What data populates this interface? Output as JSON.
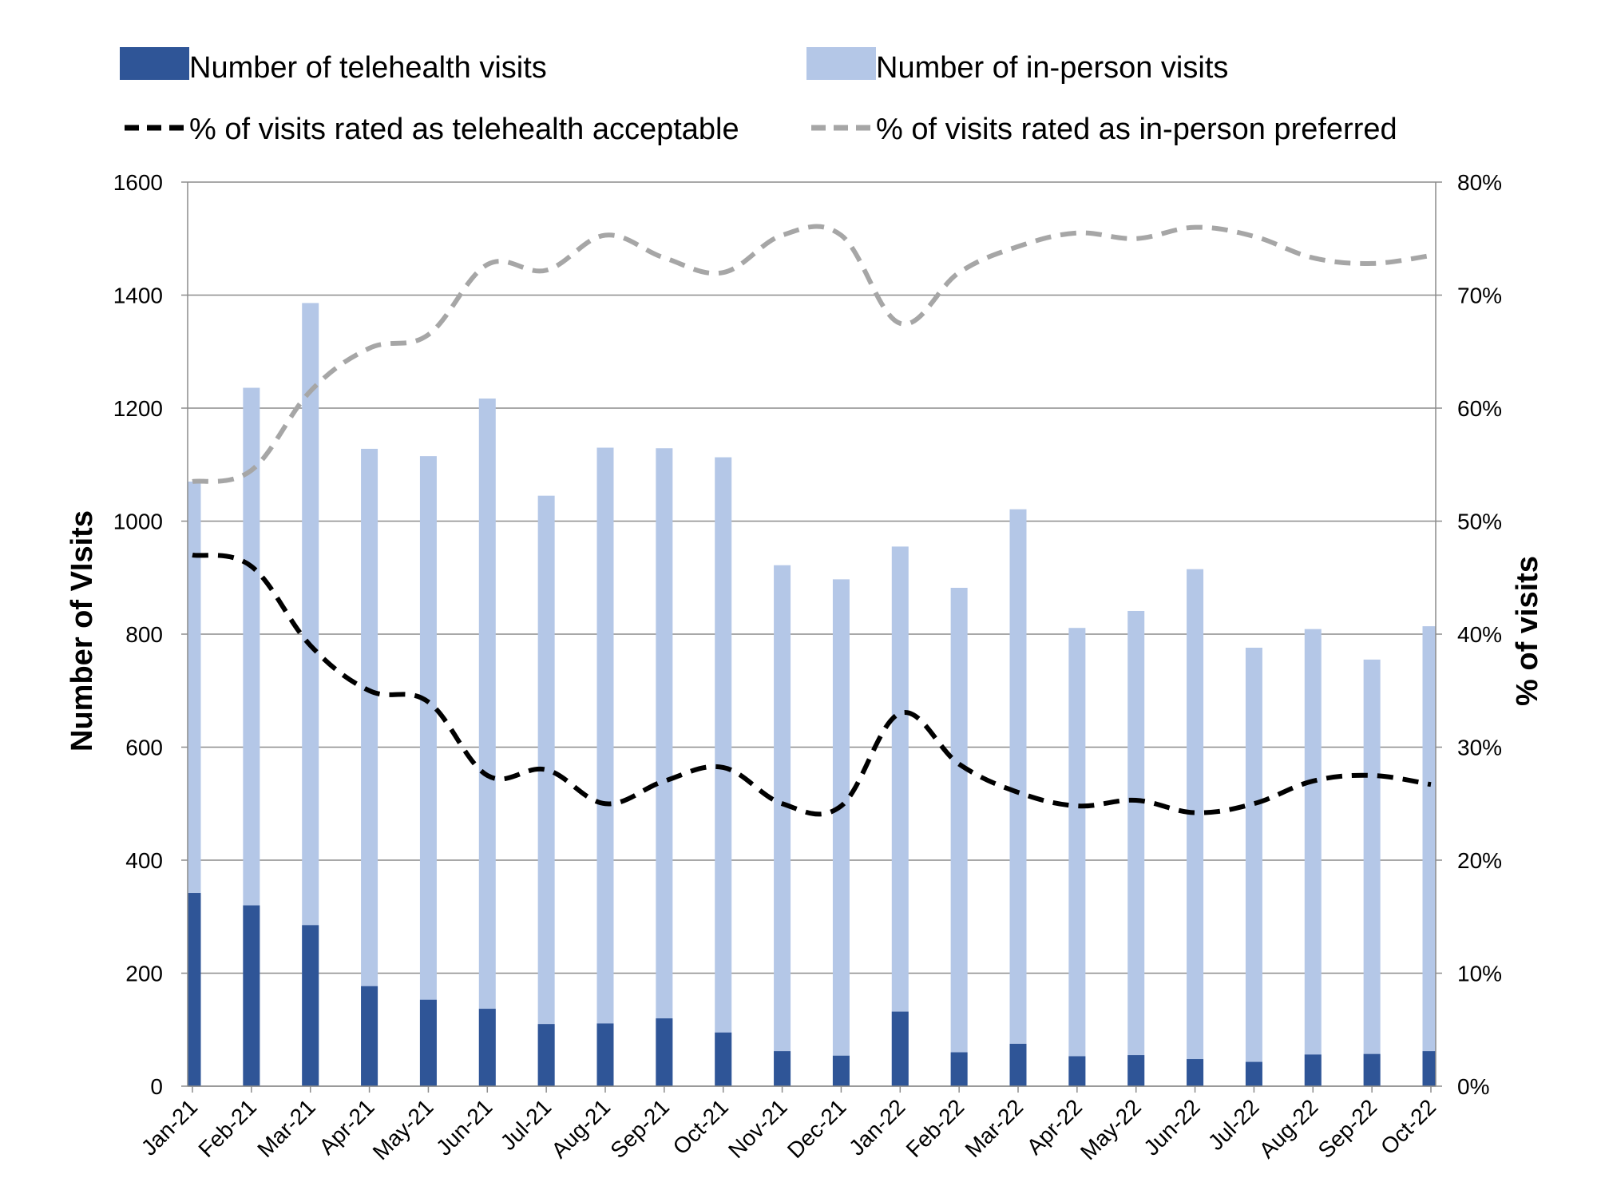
{
  "chart_data": {
    "type": "bar",
    "categories": [
      "Jan-21",
      "Feb-21",
      "Mar-21",
      "Apr-21",
      "May-21",
      "Jun-21",
      "Jul-21",
      "Aug-21",
      "Sep-21",
      "Oct-21",
      "Nov-21",
      "Dec-21",
      "Jan-22",
      "Feb-22",
      "Mar-22",
      "Apr-22",
      "May-22",
      "Jun-22",
      "Jul-22",
      "Aug-22",
      "Sep-22",
      "Oct-22"
    ],
    "bar_mode": "overlapping",
    "series": [
      {
        "name": "Number of telehealth visits",
        "type": "bar",
        "axis": "left",
        "color": "#2f5597",
        "values": [
          342,
          320,
          285,
          177,
          153,
          137,
          110,
          111,
          120,
          95,
          62,
          54,
          132,
          60,
          75,
          53,
          55,
          48,
          43,
          56,
          57,
          62
        ]
      },
      {
        "name": "Number of in-person visits",
        "type": "bar",
        "axis": "left",
        "color": "#b4c7e7",
        "values": [
          1070,
          1236,
          1386,
          1128,
          1115,
          1217,
          1045,
          1130,
          1129,
          1113,
          922,
          897,
          955,
          882,
          1021,
          811,
          841,
          915,
          776,
          809,
          755,
          814
        ]
      },
      {
        "name": "% of visits rated as telehealth acceptable",
        "type": "line",
        "axis": "right",
        "color": "#000000",
        "dash": "dashed",
        "values": [
          47.0,
          46.0,
          39.0,
          35.0,
          34.0,
          27.5,
          28.0,
          25.0,
          27.0,
          28.2,
          25.0,
          24.8,
          33.0,
          28.5,
          26.0,
          24.8,
          25.3,
          24.2,
          25.0,
          27.0,
          27.5,
          26.7
        ]
      },
      {
        "name": "% of visits rated as in-person preferred",
        "type": "line",
        "axis": "right",
        "color": "#a6a6a6",
        "dash": "dashed",
        "values": [
          53.5,
          54.5,
          61.5,
          65.3,
          66.5,
          72.7,
          72.2,
          75.3,
          73.3,
          72.0,
          75.3,
          75.3,
          67.5,
          72.0,
          74.3,
          75.5,
          75.0,
          76.0,
          75.2,
          73.3,
          72.8,
          73.5
        ]
      }
    ],
    "ylabel": "Number of VIsits",
    "y2label": "% of visits",
    "ylim": [
      0,
      1600
    ],
    "yticks": [
      "0",
      "200",
      "400",
      "600",
      "800",
      "1000",
      "1200",
      "1400",
      "1600"
    ],
    "y2lim": [
      0,
      80
    ],
    "y2ticks": [
      "0%",
      "10%",
      "20%",
      "30%",
      "40%",
      "50%",
      "60%",
      "70%",
      "80%"
    ],
    "grid": "horizontal",
    "legend_position": "top"
  }
}
